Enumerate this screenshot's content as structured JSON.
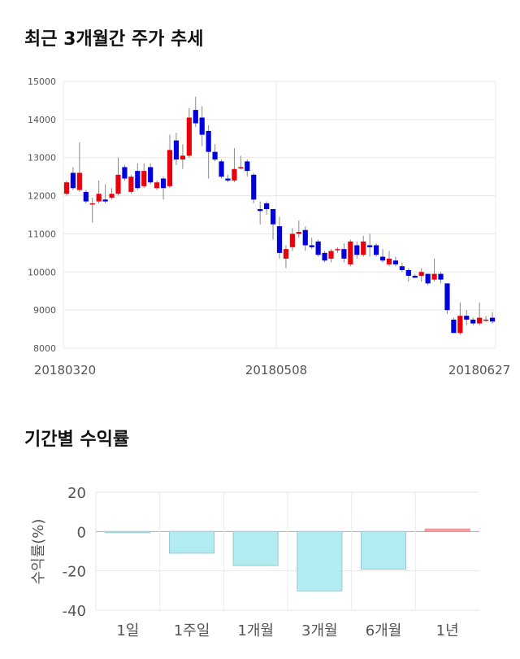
{
  "section1": {
    "title": "최근 3개월간 주가 추세"
  },
  "section2": {
    "title": "기간별 수익률"
  },
  "chart_data": [
    {
      "type": "candlestick",
      "ylim": [
        8000,
        15000
      ],
      "y_ticks": [
        "15000",
        "14000",
        "13000",
        "12000",
        "11000",
        "10000",
        "9000",
        "8000"
      ],
      "x_tick_labels": [
        "20180320",
        "20180508",
        "20180627"
      ],
      "grid": true,
      "colors": {
        "up": "#e8000b",
        "down": "#0000dd",
        "wick": "#888888"
      },
      "candles": [
        [
          12050,
          12350,
          12000,
          12400
        ],
        [
          12600,
          12200,
          12150,
          12750
        ],
        [
          12150,
          12600,
          12100,
          13400
        ],
        [
          12100,
          11850,
          11800,
          12150
        ],
        [
          11800,
          11800,
          11300,
          11950
        ],
        [
          11850,
          12050,
          11800,
          12400
        ],
        [
          11900,
          11850,
          11800,
          12300
        ],
        [
          11950,
          12050,
          11900,
          12200
        ],
        [
          12050,
          12550,
          12000,
          13000
        ],
        [
          12750,
          12450,
          12400,
          12800
        ],
        [
          12100,
          12500,
          12050,
          12550
        ],
        [
          12650,
          12200,
          12150,
          12850
        ],
        [
          12250,
          12650,
          12200,
          12850
        ],
        [
          12750,
          12350,
          12300,
          12850
        ],
        [
          12200,
          12350,
          12150,
          12400
        ],
        [
          12450,
          12200,
          11900,
          12500
        ],
        [
          12250,
          13200,
          12200,
          13600
        ],
        [
          13450,
          12950,
          12800,
          13650
        ],
        [
          12950,
          13050,
          12700,
          13350
        ],
        [
          13050,
          14050,
          13000,
          14300
        ],
        [
          14250,
          13900,
          13800,
          14600
        ],
        [
          14050,
          13600,
          13300,
          14350
        ],
        [
          13700,
          13150,
          12450,
          13850
        ],
        [
          13150,
          12950,
          12900,
          13350
        ],
        [
          12900,
          12500,
          12450,
          12950
        ],
        [
          12450,
          12400,
          12350,
          12550
        ],
        [
          12400,
          12700,
          12350,
          13250
        ],
        [
          12750,
          12750,
          12700,
          13050
        ],
        [
          12900,
          12650,
          12500,
          12950
        ],
        [
          12550,
          11900,
          11800,
          12600
        ],
        [
          11650,
          11600,
          11250,
          11850
        ],
        [
          11800,
          11650,
          11500,
          11850
        ],
        [
          11650,
          11250,
          10850,
          11650
        ],
        [
          11200,
          10500,
          10350,
          11450
        ],
        [
          10350,
          10600,
          10100,
          10700
        ],
        [
          10650,
          11000,
          10550,
          11150
        ],
        [
          11000,
          11050,
          10900,
          11350
        ],
        [
          11100,
          10700,
          10550,
          11200
        ],
        [
          10700,
          10650,
          10600,
          10900
        ],
        [
          10800,
          10450,
          10400,
          10850
        ],
        [
          10500,
          10300,
          10250,
          10550
        ],
        [
          10350,
          10550,
          10250,
          10600
        ],
        [
          10600,
          10600,
          10500,
          10650
        ],
        [
          10600,
          10350,
          10250,
          10750
        ],
        [
          10200,
          10800,
          10150,
          10850
        ],
        [
          10700,
          10450,
          10350,
          10800
        ],
        [
          10450,
          10800,
          10400,
          10950
        ],
        [
          10700,
          10650,
          10400,
          11000
        ],
        [
          10700,
          10450,
          10400,
          10750
        ],
        [
          10400,
          10300,
          10250,
          10600
        ],
        [
          10200,
          10350,
          10150,
          10550
        ],
        [
          10300,
          10200,
          10150,
          10400
        ],
        [
          10150,
          10050,
          10000,
          10250
        ],
        [
          10050,
          9900,
          9750,
          10100
        ],
        [
          9900,
          9850,
          9850,
          9950
        ],
        [
          9900,
          10000,
          9750,
          10100
        ],
        [
          9950,
          9700,
          9650,
          9950
        ],
        [
          9800,
          9950,
          9750,
          10350
        ],
        [
          9950,
          9800,
          9700,
          10000
        ],
        [
          9700,
          9000,
          8900,
          9700
        ],
        [
          8750,
          8400,
          8400,
          8800
        ],
        [
          8400,
          8850,
          8350,
          9200
        ],
        [
          8850,
          8750,
          8600,
          9000
        ],
        [
          8750,
          8650,
          8600,
          8800
        ],
        [
          8650,
          8800,
          8600,
          9200
        ],
        [
          8750,
          8750,
          8700,
          8850
        ],
        [
          8800,
          8700,
          8650,
          8950
        ]
      ]
    },
    {
      "type": "bar",
      "categories": [
        "1일",
        "1주일",
        "1개월",
        "3개월",
        "6개월",
        "1년"
      ],
      "values": [
        -0.4,
        -11,
        -17.3,
        -30.2,
        -19.1,
        1.3
      ],
      "ylim": [
        -40,
        20
      ],
      "y_ticks": [
        "20",
        "0",
        "-20",
        "-40"
      ],
      "ylabel": "수익률(%)",
      "colors": {
        "negative": "#b3ebf3",
        "negative_border": "#9cc9d1",
        "positive": "#f6a5a5",
        "positive_border": "#e88b8b"
      }
    }
  ]
}
